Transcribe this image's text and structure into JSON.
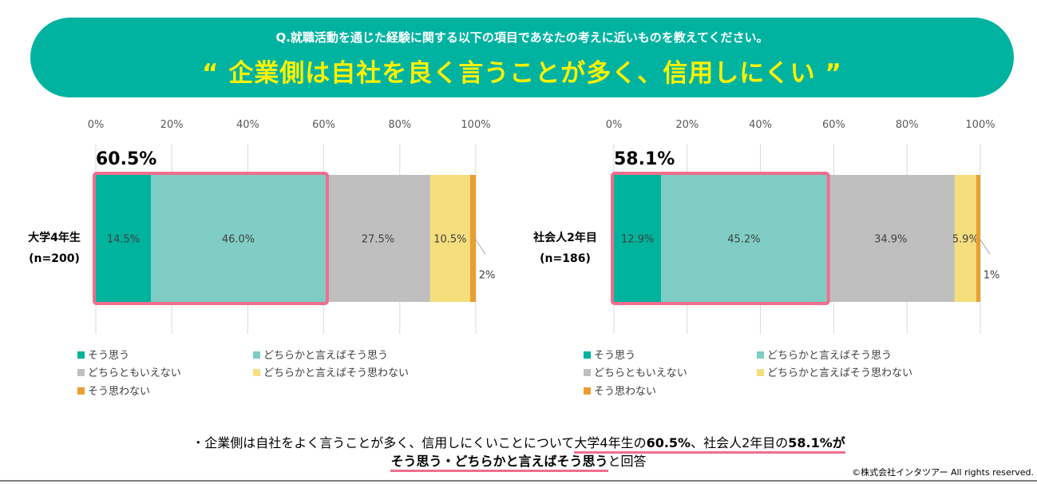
{
  "header": {
    "question": "Q.就職活動を通じた経験に関する以下の項目であなたの考えに近いものを教えてください。",
    "headline": "“ 企業側は自社を良く言うことが多く、信用しにくい ”"
  },
  "colors": {
    "banner": "#00b3a1",
    "headline": "#fff200",
    "highlight": "#f06e8e",
    "series": [
      "#00b39d",
      "#7fcdc4",
      "#bfbfbf",
      "#f5de7e",
      "#eb9d2f"
    ]
  },
  "chart_data": [
    {
      "type": "bar",
      "orientation": "horizontal-stacked-100",
      "category": "大学4年生",
      "sample": "(n=200)",
      "highlight_total": "60.5%",
      "xlim": [
        0,
        100
      ],
      "x_ticks": [
        "0%",
        "20%",
        "40%",
        "60%",
        "80%",
        "100%"
      ],
      "series": [
        {
          "name": "そう思う",
          "value": 14.5,
          "label": "14.5%"
        },
        {
          "name": "どちらかと言えばそう思う",
          "value": 46.0,
          "label": "46.0%"
        },
        {
          "name": "どちらともいえない",
          "value": 27.5,
          "label": "27.5%"
        },
        {
          "name": "どちらかと言えばそう思わない",
          "value": 10.5,
          "label": "10.5%"
        },
        {
          "name": "そう思わない",
          "value": 1.5,
          "label": "2%"
        }
      ],
      "grid": true,
      "legend_position": "bottom"
    },
    {
      "type": "bar",
      "orientation": "horizontal-stacked-100",
      "category": "社会人2年目",
      "sample": "(n=186)",
      "highlight_total": "58.1%",
      "xlim": [
        0,
        100
      ],
      "x_ticks": [
        "0%",
        "20%",
        "40%",
        "60%",
        "80%",
        "100%"
      ],
      "series": [
        {
          "name": "そう思う",
          "value": 12.9,
          "label": "12.9%"
        },
        {
          "name": "どちらかと言えばそう思う",
          "value": 45.2,
          "label": "45.2%"
        },
        {
          "name": "どちらともいえない",
          "value": 34.9,
          "label": "34.9%"
        },
        {
          "name": "どちらかと言えばそう思わない",
          "value": 5.9,
          "label": "5.9%"
        },
        {
          "name": "そう思わない",
          "value": 1.1,
          "label": "1%"
        }
      ],
      "grid": true,
      "legend_position": "bottom"
    }
  ],
  "footer": {
    "prefix": "・企業側は自社をよく言うことが多く、信用しにくいことについて",
    "u1a": "大学4年生の",
    "u1b": "60.5%",
    "u1c": "、社会人2年目の",
    "u1d": "58.1%が",
    "u2": "そう思う・どちらかと言えばそう思う",
    "suffix": "と回答"
  },
  "copyright": "©株式会社インタツアー All rights reserved."
}
